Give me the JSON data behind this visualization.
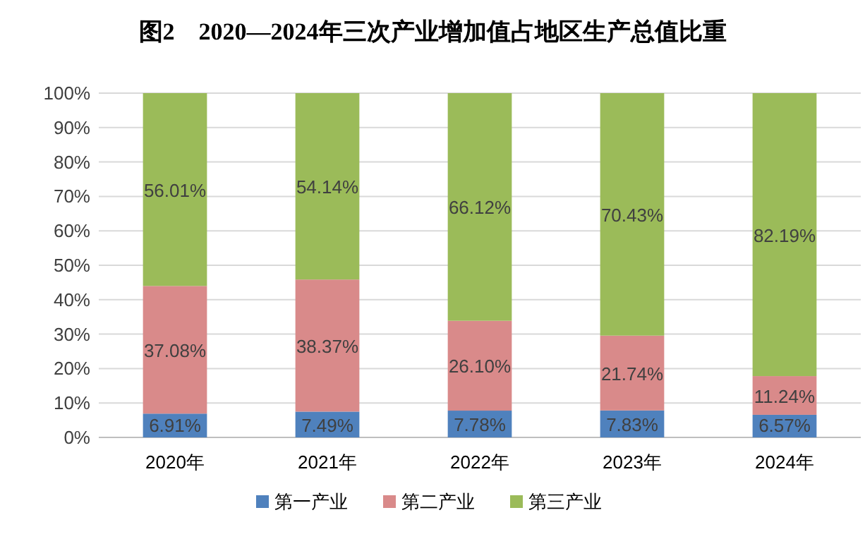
{
  "chart_data": {
    "type": "bar",
    "stacked": true,
    "title": "图2　2020—2024年三次产业增加值占地区生产总值比重",
    "categories": [
      "2020年",
      "2021年",
      "2022年",
      "2023年",
      "2024年"
    ],
    "series": [
      {
        "name": "第一产业",
        "color": "#4f81bd",
        "values": [
          6.91,
          7.49,
          7.78,
          7.83,
          6.57
        ],
        "value_labels": [
          "6.91%",
          "7.49%",
          "7.78%",
          "7.83%",
          "6.57%"
        ]
      },
      {
        "name": "第二产业",
        "color": "#d98a8a",
        "values": [
          37.08,
          38.37,
          26.1,
          21.74,
          11.24
        ],
        "value_labels": [
          "37.08%",
          "38.37%",
          "26.10%",
          "21.74%",
          "11.24%"
        ]
      },
      {
        "name": "第三产业",
        "color": "#9bbb59",
        "values": [
          56.01,
          54.14,
          66.12,
          70.43,
          82.19
        ],
        "value_labels": [
          "56.01%",
          "54.14%",
          "66.12%",
          "70.43%",
          "82.19%"
        ]
      }
    ],
    "ylim": [
      0,
      100
    ],
    "yticks": [
      {
        "value": 0,
        "label": "0%"
      },
      {
        "value": 10,
        "label": "10%"
      },
      {
        "value": 20,
        "label": "20%"
      },
      {
        "value": 30,
        "label": "30%"
      },
      {
        "value": 40,
        "label": "40%"
      },
      {
        "value": 50,
        "label": "50%"
      },
      {
        "value": 60,
        "label": "60%"
      },
      {
        "value": 70,
        "label": "70%"
      },
      {
        "value": 80,
        "label": "80%"
      },
      {
        "value": 90,
        "label": "90%"
      },
      {
        "value": 100,
        "label": "100%"
      }
    ],
    "grid": "y",
    "legend": "bottom"
  }
}
